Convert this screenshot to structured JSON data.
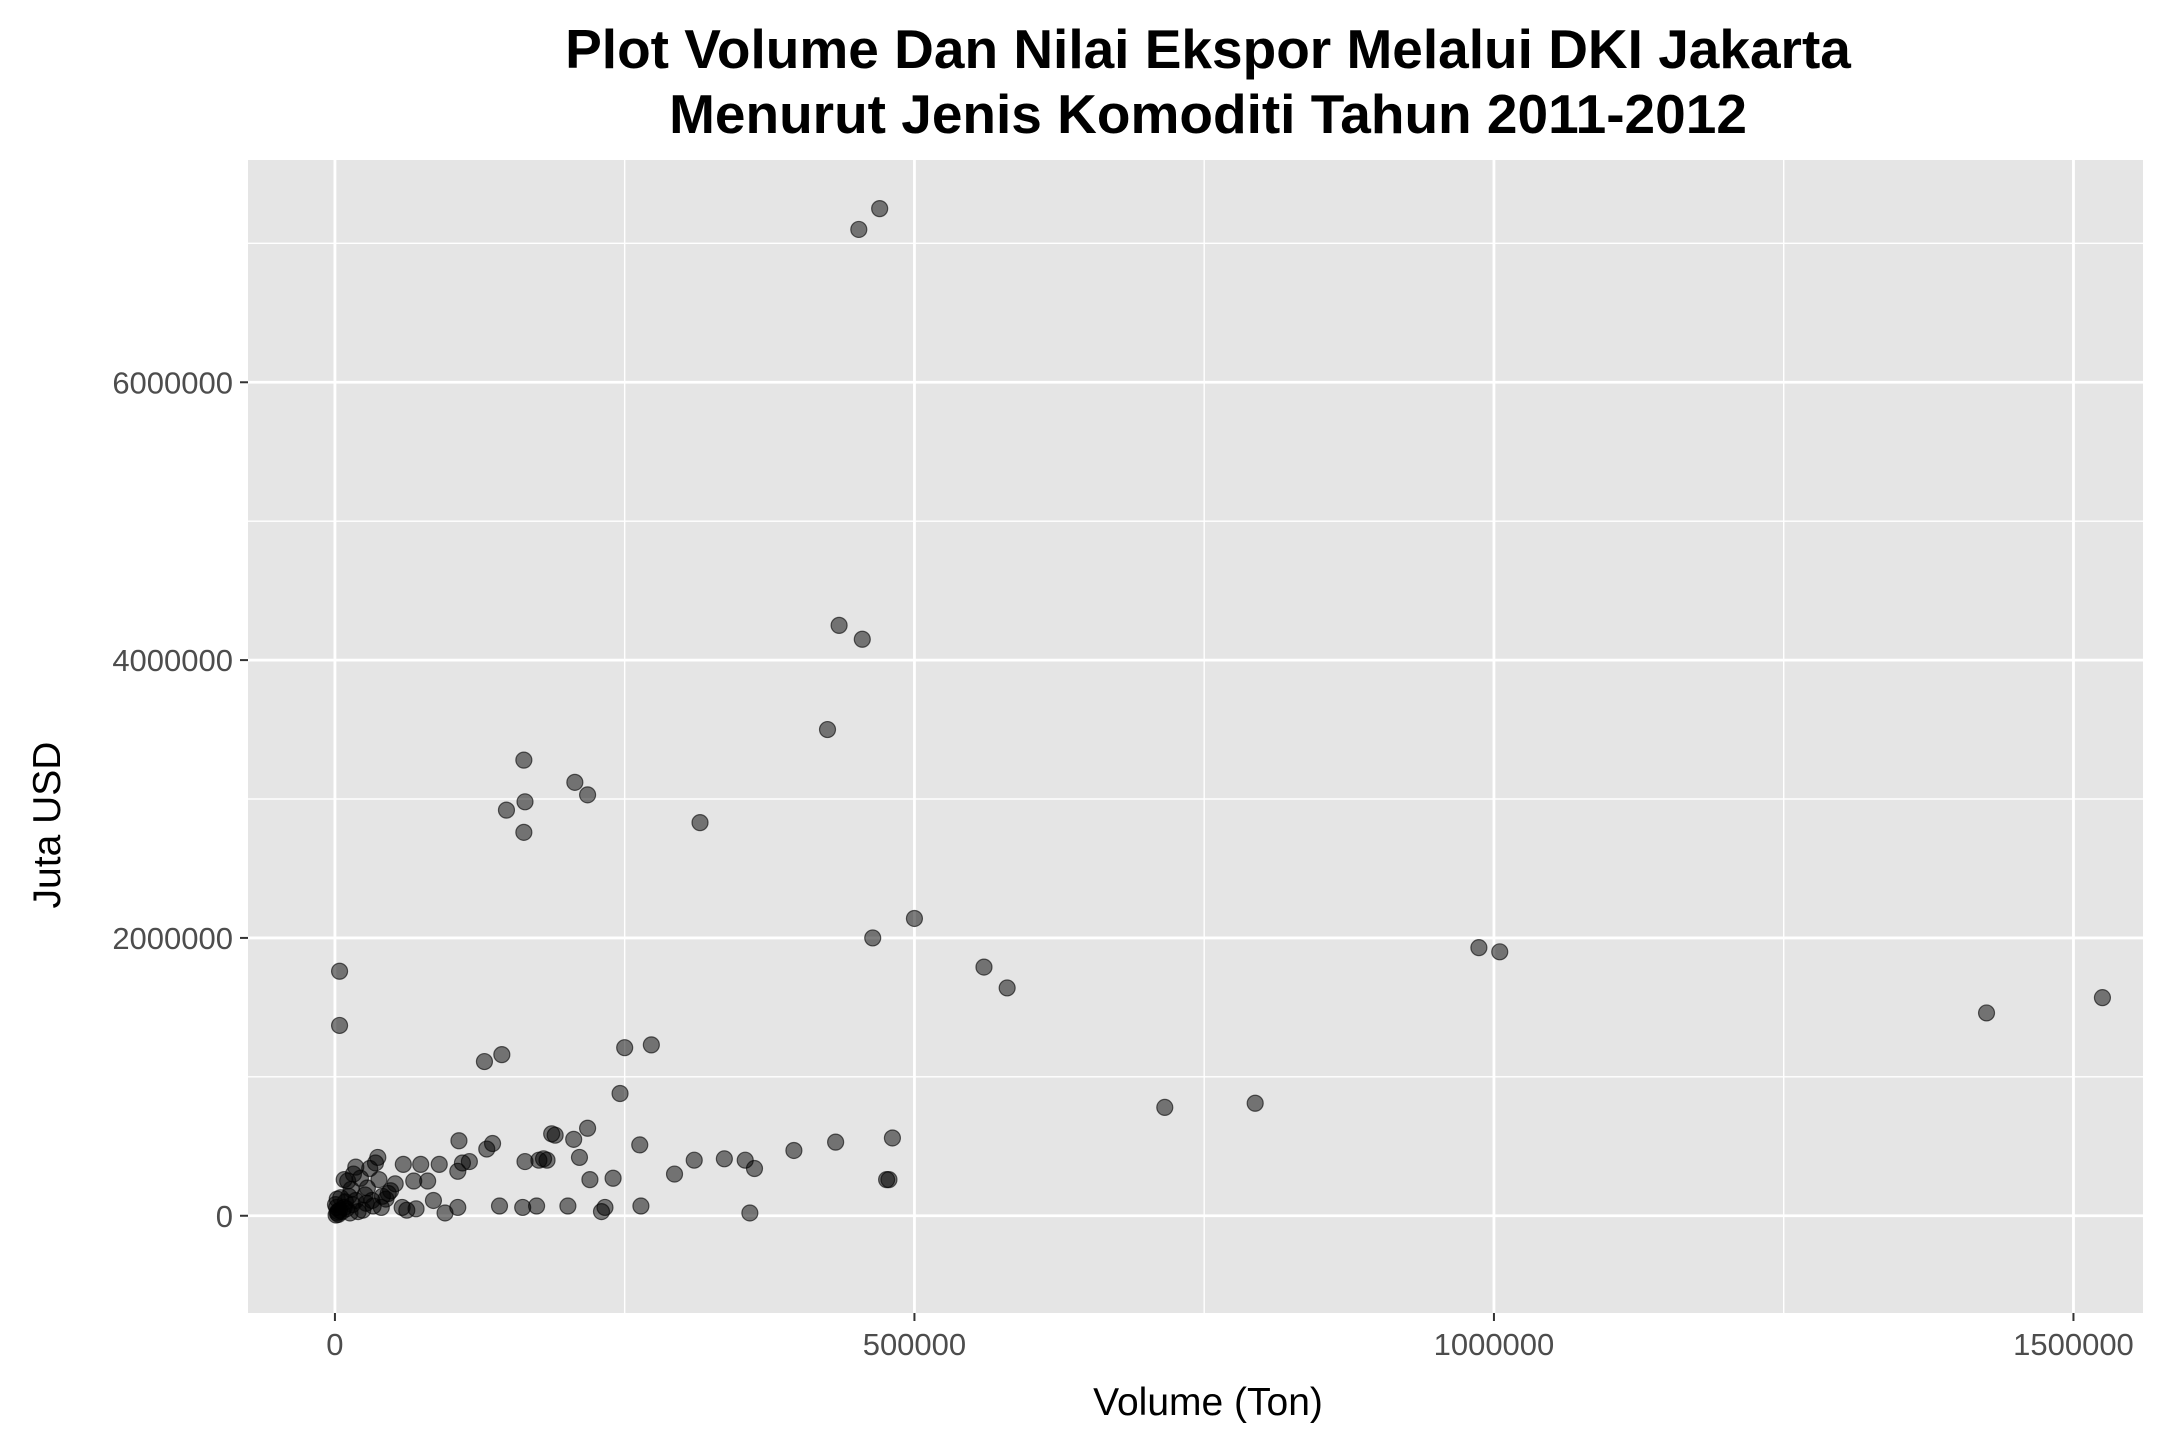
{
  "chart_data": {
    "type": "scatter",
    "title_lines": [
      "Plot Volume Dan Nilai Ekspor Melalui DKI Jakarta",
      "Menurut Jenis Komoditi Tahun 2011-2012"
    ],
    "xlabel": "Volume (Ton)",
    "ylabel": "Juta USD",
    "xlim": [
      -75000,
      1560000
    ],
    "ylim": [
      -700000,
      7600000
    ],
    "grid": true,
    "legend": "none",
    "x_ticks": [
      0,
      500000,
      1000000,
      1500000
    ],
    "x_tick_labels": [
      "0",
      "500000",
      "1000000",
      "1500000"
    ],
    "y_ticks": [
      0,
      2000000,
      4000000,
      6000000
    ],
    "y_tick_labels": [
      "0",
      "2000000",
      "4000000",
      "6000000"
    ],
    "colors": {
      "panel": "#e5e5e5",
      "grid": "#ffffff",
      "point": "#000000",
      "tick_text": "#4d4d4d"
    },
    "points": [
      [
        470000,
        7250000
      ],
      [
        452000,
        7100000
      ],
      [
        435000,
        4250000
      ],
      [
        455000,
        4150000
      ],
      [
        425000,
        3500000
      ],
      [
        163000,
        3280000
      ],
      [
        164000,
        2980000
      ],
      [
        148000,
        2920000
      ],
      [
        163000,
        2760000
      ],
      [
        207000,
        3120000
      ],
      [
        218000,
        3030000
      ],
      [
        315000,
        2830000
      ],
      [
        500000,
        2140000
      ],
      [
        464000,
        2000000
      ],
      [
        560000,
        1790000
      ],
      [
        580000,
        1640000
      ],
      [
        987000,
        1930000
      ],
      [
        1005000,
        1900000
      ],
      [
        1425000,
        1460000
      ],
      [
        1525000,
        1570000
      ],
      [
        716000,
        780000
      ],
      [
        794000,
        810000
      ],
      [
        4000,
        1760000
      ],
      [
        4000,
        1370000
      ],
      [
        129000,
        1110000
      ],
      [
        144000,
        1160000
      ],
      [
        250000,
        1210000
      ],
      [
        273000,
        1230000
      ],
      [
        246000,
        880000
      ],
      [
        107000,
        540000
      ],
      [
        131000,
        480000
      ],
      [
        136000,
        520000
      ],
      [
        187000,
        590000
      ],
      [
        190000,
        580000
      ],
      [
        218000,
        630000
      ],
      [
        176000,
        400000
      ],
      [
        180000,
        410000
      ],
      [
        183000,
        400000
      ],
      [
        164000,
        390000
      ],
      [
        206000,
        550000
      ],
      [
        211000,
        420000
      ],
      [
        220000,
        260000
      ],
      [
        240000,
        270000
      ],
      [
        263000,
        510000
      ],
      [
        293000,
        300000
      ],
      [
        310000,
        400000
      ],
      [
        336000,
        410000
      ],
      [
        354000,
        400000
      ],
      [
        362000,
        340000
      ],
      [
        396000,
        470000
      ],
      [
        432000,
        530000
      ],
      [
        478000,
        260000
      ],
      [
        476000,
        260000
      ],
      [
        481000,
        560000
      ],
      [
        358000,
        20000
      ],
      [
        264000,
        70000
      ],
      [
        230000,
        30000
      ],
      [
        233000,
        60000
      ],
      [
        201000,
        70000
      ],
      [
        174000,
        70000
      ],
      [
        162000,
        60000
      ],
      [
        142000,
        70000
      ],
      [
        106000,
        60000
      ],
      [
        95000,
        20000
      ],
      [
        85000,
        110000
      ],
      [
        80000,
        250000
      ],
      [
        90000,
        370000
      ],
      [
        110000,
        380000
      ],
      [
        116000,
        390000
      ],
      [
        106000,
        320000
      ],
      [
        74000,
        370000
      ],
      [
        59000,
        370000
      ],
      [
        68000,
        250000
      ],
      [
        52000,
        230000
      ],
      [
        46000,
        160000
      ],
      [
        41000,
        140000
      ],
      [
        38000,
        260000
      ],
      [
        35000,
        380000
      ],
      [
        37000,
        420000
      ],
      [
        30000,
        340000
      ],
      [
        18000,
        350000
      ],
      [
        16000,
        300000
      ],
      [
        22000,
        270000
      ],
      [
        11000,
        250000
      ],
      [
        8000,
        260000
      ],
      [
        5000,
        130000
      ],
      [
        2000,
        120000
      ],
      [
        12000,
        140000
      ],
      [
        18000,
        110000
      ],
      [
        27000,
        90000
      ],
      [
        33000,
        70000
      ],
      [
        24000,
        40000
      ],
      [
        58000,
        60000
      ],
      [
        62000,
        40000
      ],
      [
        70000,
        50000
      ],
      [
        48000,
        180000
      ],
      [
        28000,
        200000
      ],
      [
        15000,
        80000
      ],
      [
        8000,
        60000
      ],
      [
        4000,
        40000
      ],
      [
        2000,
        20000
      ],
      [
        1000,
        5000
      ],
      [
        3000,
        10000
      ],
      [
        6000,
        30000
      ],
      [
        10000,
        50000
      ],
      [
        13000,
        20000
      ],
      [
        20000,
        30000
      ],
      [
        40000,
        60000
      ],
      [
        44000,
        120000
      ],
      [
        26000,
        150000
      ],
      [
        14000,
        190000
      ],
      [
        500,
        80000
      ],
      [
        1500,
        60000
      ],
      [
        2500,
        30000
      ],
      [
        9000,
        100000
      ],
      [
        32000,
        110000
      ]
    ]
  }
}
